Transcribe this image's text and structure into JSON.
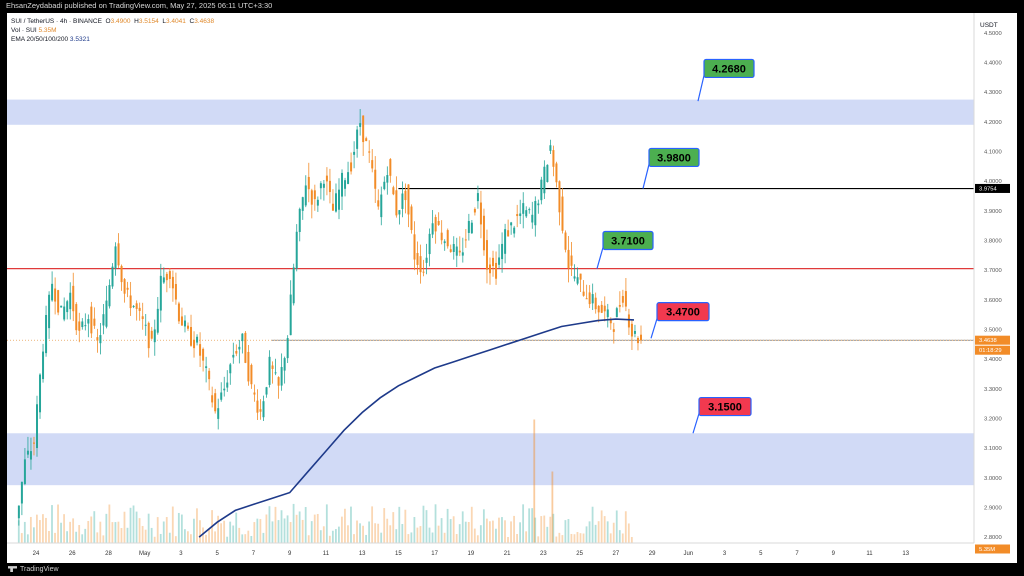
{
  "header": {
    "published": "EhsanZeydabadi published on TradingView.com, May 27, 2025 06:11 UTC+3:30"
  },
  "footer": {
    "brand": "TradingView"
  },
  "legend": {
    "symbol": "SUI / TetherUS · 4h · BINANCE",
    "o_label": "O",
    "open": "3.4900",
    "h_label": "H",
    "high": "3.5154",
    "l_label": "L",
    "low": "3.4041",
    "c_label": "C",
    "close": "3.4638",
    "vol_label": "Vol · SUI",
    "vol_value": "5.35M",
    "ema_label": "EMA 20/50/100/200",
    "ema_value": "3.5321"
  },
  "colors": {
    "up": "#26a69a",
    "down": "#f28c28",
    "ema": "#1e3a8a",
    "zone": "#c9d3f5",
    "resistance": "#e03a3a",
    "black_line": "#000000",
    "label_green": "#4caf50",
    "label_red": "#f2394f",
    "label_border": "#2962ff"
  },
  "chart_data": {
    "type": "candlestick",
    "currency_label": "USDT",
    "y_ticks": [
      "4.5000",
      "4.4000",
      "4.3000",
      "4.2000",
      "4.1000",
      "4.0000",
      "3.9000",
      "3.8000",
      "3.7000",
      "3.6000",
      "3.5000",
      "3.4000",
      "3.3000",
      "3.2000",
      "3.1000",
      "3.0000",
      "2.9000",
      "2.8000"
    ],
    "ylim": [
      2.78,
      4.54
    ],
    "x_tick_labels": [
      "24",
      "26",
      "28",
      "May",
      "3",
      "5",
      "7",
      "9",
      "11",
      "13",
      "15",
      "17",
      "19",
      "21",
      "23",
      "25",
      "27",
      "29",
      "Jun",
      "3",
      "5",
      "7",
      "9",
      "11",
      "13"
    ],
    "price_scale_tags": [
      {
        "value": "3.9754",
        "price": 3.9754,
        "style": "black"
      },
      {
        "value": "3.4638",
        "price": 3.4638,
        "style": "orange"
      },
      {
        "value": "01:18:29",
        "price": 3.43,
        "style": "orange"
      },
      {
        "value": "5.35M",
        "price": 2.75,
        "style": "orange"
      }
    ],
    "zones": [
      {
        "from": 4.19,
        "to": 4.275
      },
      {
        "from": 2.975,
        "to": 3.15
      }
    ],
    "horizontal_lines": [
      {
        "price": 3.975,
        "style": "black",
        "start_date": "2025-05-14"
      },
      {
        "price": 3.705,
        "style": "resistance"
      },
      {
        "price": 3.4638,
        "style": "current",
        "start_date": "2025-05-07"
      }
    ],
    "labels": [
      {
        "text": "4.2680",
        "price": 4.38,
        "anchor_price": 4.27,
        "style": "green"
      },
      {
        "text": "3.9800",
        "price": 4.08,
        "anchor_price": 3.975,
        "style": "green"
      },
      {
        "text": "3.7100",
        "price": 3.8,
        "anchor_price": 3.705,
        "style": "green"
      },
      {
        "text": "3.4700",
        "price": 3.56,
        "anchor_price": 3.47,
        "style": "red"
      },
      {
        "text": "3.1500",
        "price": 3.24,
        "anchor_price": 3.15,
        "style": "red"
      }
    ],
    "price_path": [
      [
        "2025-04-23",
        2.85
      ],
      [
        "2025-04-23",
        3.05
      ],
      [
        "2025-04-24",
        3.12
      ],
      [
        "2025-04-24",
        3.45
      ],
      [
        "2025-04-25",
        3.66
      ],
      [
        "2025-04-25",
        3.55
      ],
      [
        "2025-04-26",
        3.62
      ],
      [
        "2025-04-26",
        3.48
      ],
      [
        "2025-04-27",
        3.55
      ],
      [
        "2025-04-27",
        3.45
      ],
      [
        "2025-04-28",
        3.58
      ],
      [
        "2025-04-28",
        3.8
      ],
      [
        "2025-04-29",
        3.62
      ],
      [
        "2025-04-29",
        3.58
      ],
      [
        "2025-04-30",
        3.52
      ],
      [
        "2025-04-30",
        3.44
      ],
      [
        "2025-05-01",
        3.66
      ],
      [
        "2025-05-01",
        3.7
      ],
      [
        "2025-05-02",
        3.55
      ],
      [
        "2025-05-02",
        3.48
      ],
      [
        "2025-05-03",
        3.45
      ],
      [
        "2025-05-03",
        3.35
      ],
      [
        "2025-05-04",
        3.22
      ],
      [
        "2025-05-04",
        3.3
      ],
      [
        "2025-05-05",
        3.42
      ],
      [
        "2025-05-05",
        3.46
      ],
      [
        "2025-05-06",
        3.3
      ],
      [
        "2025-05-06",
        3.22
      ],
      [
        "2025-05-07",
        3.38
      ],
      [
        "2025-05-07",
        3.3
      ],
      [
        "2025-05-08",
        3.48
      ],
      [
        "2025-05-08",
        3.82
      ],
      [
        "2025-05-09",
        4.0
      ],
      [
        "2025-05-09",
        3.92
      ],
      [
        "2025-05-10",
        4.02
      ],
      [
        "2025-05-10",
        3.9
      ],
      [
        "2025-05-11",
        4.0
      ],
      [
        "2025-05-11",
        4.06
      ],
      [
        "2025-05-12",
        4.2
      ],
      [
        "2025-05-12",
        4.08
      ],
      [
        "2025-05-13",
        3.9
      ],
      [
        "2025-05-13",
        4.05
      ],
      [
        "2025-05-14",
        3.9
      ],
      [
        "2025-05-14",
        3.96
      ],
      [
        "2025-05-15",
        3.75
      ],
      [
        "2025-05-15",
        3.7
      ],
      [
        "2025-05-16",
        3.88
      ],
      [
        "2025-05-16",
        3.82
      ],
      [
        "2025-05-17",
        3.78
      ],
      [
        "2025-05-17",
        3.74
      ],
      [
        "2025-05-18",
        3.85
      ],
      [
        "2025-05-18",
        3.95
      ],
      [
        "2025-05-19",
        3.72
      ],
      [
        "2025-05-19",
        3.7
      ],
      [
        "2025-05-20",
        3.82
      ],
      [
        "2025-05-20",
        3.86
      ],
      [
        "2025-05-21",
        3.9
      ],
      [
        "2025-05-21",
        3.88
      ],
      [
        "2025-05-22",
        3.98
      ],
      [
        "2025-05-22",
        4.12
      ],
      [
        "2025-05-23",
        3.92
      ],
      [
        "2025-05-23",
        3.72
      ],
      [
        "2025-05-24",
        3.66
      ],
      [
        "2025-05-24",
        3.62
      ],
      [
        "2025-05-25",
        3.58
      ],
      [
        "2025-05-25",
        3.55
      ],
      [
        "2025-05-26",
        3.52
      ],
      [
        "2025-05-26",
        3.62
      ],
      [
        "2025-05-27",
        3.49
      ],
      [
        "2025-05-27",
        3.4638
      ]
    ],
    "ema_path": [
      [
        "2025-05-03",
        2.8
      ],
      [
        "2025-05-04",
        2.85
      ],
      [
        "2025-05-05",
        2.89
      ],
      [
        "2025-05-06",
        2.91
      ],
      [
        "2025-05-07",
        2.93
      ],
      [
        "2025-05-08",
        2.95
      ],
      [
        "2025-05-09",
        3.02
      ],
      [
        "2025-05-10",
        3.09
      ],
      [
        "2025-05-11",
        3.16
      ],
      [
        "2025-05-12",
        3.22
      ],
      [
        "2025-05-13",
        3.27
      ],
      [
        "2025-05-14",
        3.31
      ],
      [
        "2025-05-15",
        3.34
      ],
      [
        "2025-05-16",
        3.37
      ],
      [
        "2025-05-17",
        3.39
      ],
      [
        "2025-05-18",
        3.41
      ],
      [
        "2025-05-19",
        3.43
      ],
      [
        "2025-05-20",
        3.45
      ],
      [
        "2025-05-21",
        3.47
      ],
      [
        "2025-05-22",
        3.49
      ],
      [
        "2025-05-23",
        3.51
      ],
      [
        "2025-05-24",
        3.52
      ],
      [
        "2025-05-25",
        3.53
      ],
      [
        "2025-05-26",
        3.535
      ],
      [
        "2025-05-27",
        3.5321
      ]
    ],
    "volume_spikes": [
      {
        "date": "2025-05-22",
        "level": 0.95
      },
      {
        "date": "2025-05-23",
        "level": 0.55
      }
    ]
  }
}
